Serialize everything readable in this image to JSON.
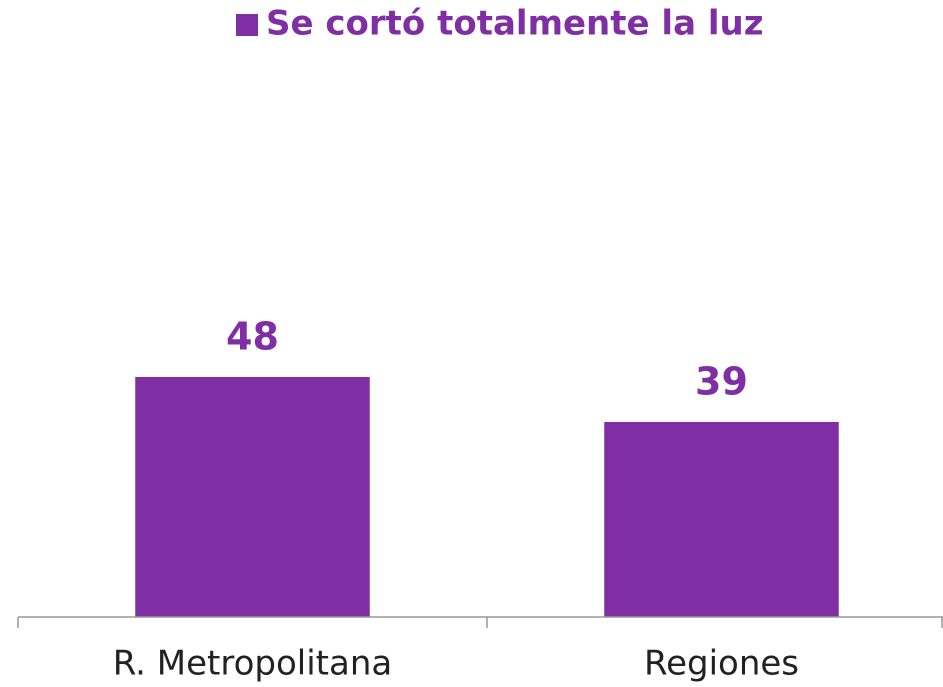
{
  "chart_data": {
    "type": "bar",
    "categories": [
      "R. Metropolitana",
      "Regiones"
    ],
    "series": [
      {
        "name": "Se cortó totalmente la luz",
        "color": "#7f2fa3",
        "values": [
          48,
          39
        ]
      }
    ],
    "ylim": [
      0,
      100
    ]
  }
}
